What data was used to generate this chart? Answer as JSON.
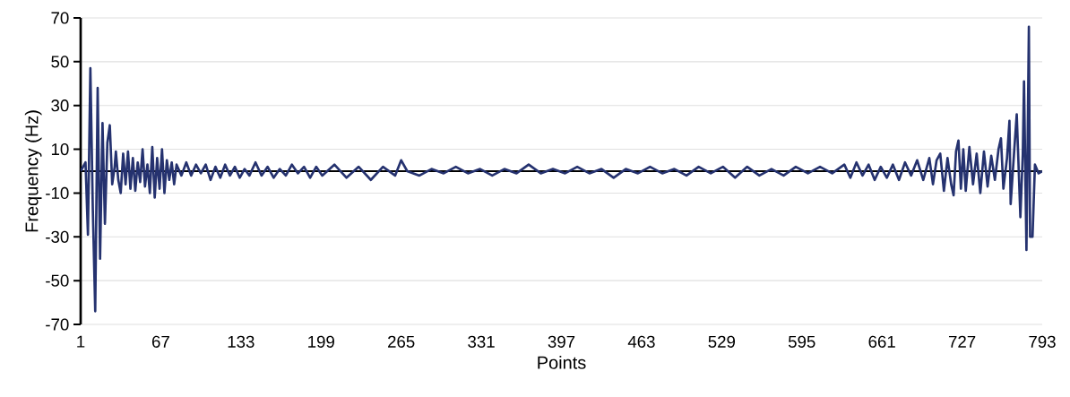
{
  "chart_data": {
    "type": "line",
    "xlabel": "Points",
    "ylabel": "Frequency (Hz)",
    "xlim": [
      1,
      793
    ],
    "xticks": [
      1,
      67,
      133,
      199,
      265,
      331,
      397,
      463,
      529,
      595,
      661,
      727,
      793
    ],
    "ylim": [
      -70,
      70
    ],
    "yticks": [
      -70,
      -50,
      -30,
      -10,
      10,
      30,
      50,
      70
    ],
    "grid": "y",
    "marker": "none",
    "line_style": "solid",
    "ref_lines": [
      {
        "axis": "y",
        "value": 0,
        "color": "#000000"
      }
    ],
    "series": [
      {
        "color": "#25326f",
        "x": [
          1,
          3,
          5,
          7,
          9,
          11,
          13,
          15,
          17,
          19,
          21,
          23,
          25,
          27,
          29,
          30,
          32,
          34,
          36,
          38,
          40,
          42,
          44,
          46,
          48,
          50,
          52,
          54,
          56,
          58,
          60,
          62,
          64,
          66,
          68,
          70,
          72,
          74,
          76,
          78,
          80,
          84,
          88,
          92,
          96,
          100,
          104,
          108,
          112,
          116,
          120,
          124,
          128,
          132,
          136,
          140,
          145,
          150,
          155,
          160,
          165,
          170,
          175,
          180,
          185,
          190,
          195,
          200,
          210,
          220,
          230,
          240,
          250,
          260,
          265,
          270,
          280,
          290,
          300,
          310,
          320,
          330,
          340,
          350,
          360,
          370,
          380,
          390,
          400,
          410,
          420,
          430,
          440,
          450,
          460,
          470,
          480,
          490,
          500,
          510,
          520,
          530,
          540,
          550,
          560,
          570,
          580,
          590,
          600,
          610,
          620,
          630,
          635,
          640,
          645,
          650,
          655,
          660,
          665,
          670,
          675,
          680,
          685,
          690,
          695,
          700,
          703,
          706,
          709,
          712,
          715,
          718,
          720,
          722,
          724,
          726,
          728,
          730,
          733,
          736,
          739,
          742,
          745,
          748,
          751,
          754,
          757,
          759,
          761,
          764,
          766,
          767,
          770,
          772,
          775,
          777,
          778,
          780,
          782,
          783,
          785,
          787,
          790,
          793
        ],
        "values": [
          0,
          2,
          4,
          -29,
          47,
          -17,
          -64,
          38,
          -40,
          22,
          -24,
          13,
          21,
          -6,
          2,
          9,
          -4,
          -10,
          8,
          -6,
          9,
          -8,
          6,
          -9,
          4,
          -5,
          10,
          -7,
          3,
          -10,
          11,
          -12,
          6,
          -8,
          10,
          -10,
          5,
          -4,
          4,
          -6,
          3,
          -2,
          4,
          -2,
          3,
          -1,
          3,
          -4,
          2,
          -3,
          3,
          -2,
          2,
          -3,
          1,
          -2,
          4,
          -2,
          2,
          -3,
          1,
          -2,
          3,
          -1,
          2,
          -3,
          2,
          -2,
          3,
          -3,
          2,
          -4,
          2,
          -2,
          5,
          0,
          -2,
          1,
          -1,
          2,
          -1,
          1,
          -2,
          1,
          -1,
          3,
          -1,
          1,
          -1,
          2,
          -1,
          1,
          -3,
          1,
          -1,
          2,
          -1,
          1,
          -2,
          2,
          -1,
          2,
          -3,
          2,
          -2,
          1,
          -2,
          2,
          -1,
          2,
          -1,
          3,
          -3,
          4,
          -2,
          3,
          -4,
          2,
          -3,
          3,
          -4,
          4,
          -2,
          5,
          -4,
          6,
          -6,
          5,
          8,
          -9,
          6,
          -6,
          -11,
          9,
          14,
          -8,
          10,
          -9,
          11,
          -6,
          8,
          -10,
          9,
          -7,
          7,
          -4,
          10,
          15,
          -8,
          6,
          23,
          -15,
          10,
          26,
          -21,
          8,
          41,
          -36,
          66,
          -30,
          -30,
          3,
          -1,
          0
        ]
      }
    ]
  }
}
